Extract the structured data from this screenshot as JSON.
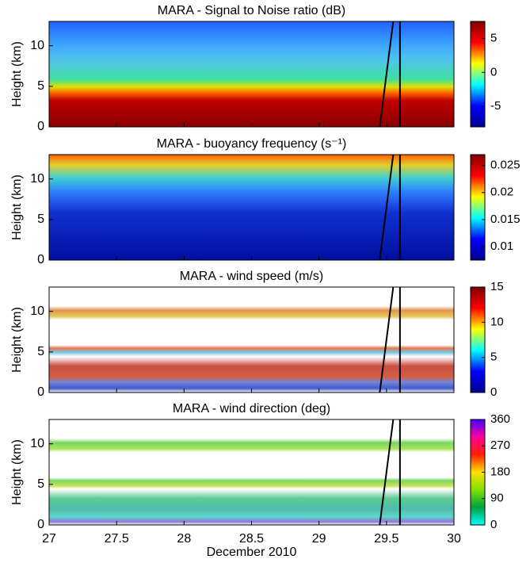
{
  "chart_data": [
    {
      "type": "heatmap",
      "title": "MARA - Signal to Noise ratio (dB)",
      "ylabel": "Height (km)",
      "xlim": [
        27,
        30
      ],
      "xticks": [
        27,
        27.5,
        28,
        28.5,
        29,
        29.5,
        30
      ],
      "ylim": [
        0,
        13
      ],
      "yticks": [
        0,
        5,
        10
      ],
      "clim": [
        -8,
        7.5
      ],
      "cticks": [
        -5,
        0,
        5
      ],
      "colormap": [
        "#00008f",
        "#0000ff",
        "#00ffff",
        "#ffff00",
        "#ff0000",
        "#800000"
      ]
    },
    {
      "type": "heatmap",
      "title": "MARA - buoyancy frequency (s⁻¹)",
      "ylabel": "Height (km)",
      "xlim": [
        27,
        30
      ],
      "xticks": [
        27,
        27.5,
        28,
        28.5,
        29,
        29.5,
        30
      ],
      "ylim": [
        0,
        13
      ],
      "yticks": [
        0,
        5,
        10
      ],
      "clim": [
        0.0075,
        0.027
      ],
      "cticks": [
        0.01,
        0.015,
        0.02,
        0.025
      ],
      "colormap": [
        "#00008f",
        "#0000ff",
        "#00ffff",
        "#ffff00",
        "#ff0000",
        "#800000"
      ]
    },
    {
      "type": "heatmap",
      "title": "MARA - wind speed (m/s)",
      "ylabel": "Height (km)",
      "xlim": [
        27,
        30
      ],
      "xticks": [
        27,
        27.5,
        28,
        28.5,
        29,
        29.5,
        30
      ],
      "ylim": [
        0,
        13
      ],
      "yticks": [
        0,
        5,
        10
      ],
      "clim": [
        0,
        15
      ],
      "cticks": [
        0,
        5,
        10,
        15
      ],
      "colormap": [
        "#00008f",
        "#0000ff",
        "#00ffff",
        "#ffff00",
        "#ff0000",
        "#800000"
      ]
    },
    {
      "type": "heatmap",
      "title": "MARA - wind direction (deg)",
      "ylabel": "Height (km)",
      "xlabel": "December 2010",
      "xlim": [
        27,
        30
      ],
      "xticks": [
        27,
        27.5,
        28,
        28.5,
        29,
        29.5,
        30
      ],
      "ylim": [
        0,
        13
      ],
      "yticks": [
        0,
        5,
        10
      ],
      "clim": [
        0,
        360
      ],
      "cticks": [
        0,
        90,
        180,
        270,
        360
      ],
      "colormap": [
        "#00ffff",
        "#00a040",
        "#80e000",
        "#ffe000",
        "#ff2000",
        "#ff00a0",
        "#4000ff"
      ]
    }
  ]
}
